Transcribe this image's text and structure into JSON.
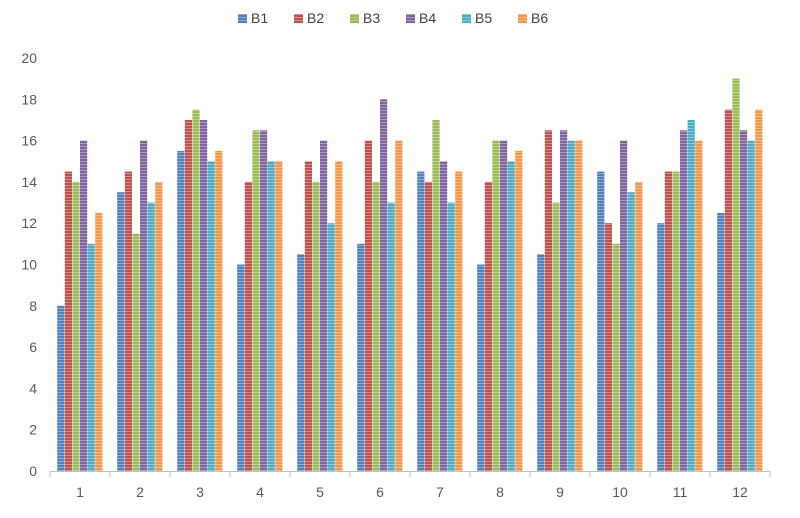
{
  "chart_data": {
    "type": "bar",
    "categories": [
      "1",
      "2",
      "3",
      "4",
      "5",
      "6",
      "7",
      "8",
      "9",
      "10",
      "11",
      "12"
    ],
    "series": [
      {
        "name": "B1",
        "color": "#4F81BD",
        "values": [
          8,
          13.5,
          15.5,
          10,
          10.5,
          11,
          14.5,
          10,
          10.5,
          14.5,
          12,
          12.5
        ]
      },
      {
        "name": "B2",
        "color": "#C0504D",
        "values": [
          14.5,
          14.5,
          17,
          14,
          15,
          16,
          14,
          14,
          16.5,
          12,
          14.5,
          17.5
        ]
      },
      {
        "name": "B3",
        "color": "#9BBB59",
        "values": [
          14,
          11.5,
          17.5,
          16.5,
          14,
          14,
          17,
          16,
          13,
          11,
          14.5,
          19
        ]
      },
      {
        "name": "B4",
        "color": "#8064A2",
        "values": [
          16,
          16,
          17,
          16.5,
          16,
          18,
          15,
          16,
          16.5,
          16,
          16.5,
          16.5
        ]
      },
      {
        "name": "B5",
        "color": "#4BACC6",
        "values": [
          11,
          13,
          15,
          15,
          12,
          13,
          13,
          15,
          16,
          13.5,
          17,
          16
        ]
      },
      {
        "name": "B6",
        "color": "#F79646",
        "values": [
          12.5,
          14,
          15.5,
          15,
          15,
          16,
          14.5,
          15.5,
          16,
          14,
          16,
          17.5
        ]
      }
    ],
    "ylim": [
      0,
      20
    ],
    "yticks": [
      "0",
      "2",
      "4",
      "6",
      "8",
      "10",
      "12",
      "14",
      "16",
      "18",
      "20"
    ],
    "legend_position": "top",
    "grid": false,
    "title": "",
    "xlabel": "",
    "ylabel": ""
  }
}
